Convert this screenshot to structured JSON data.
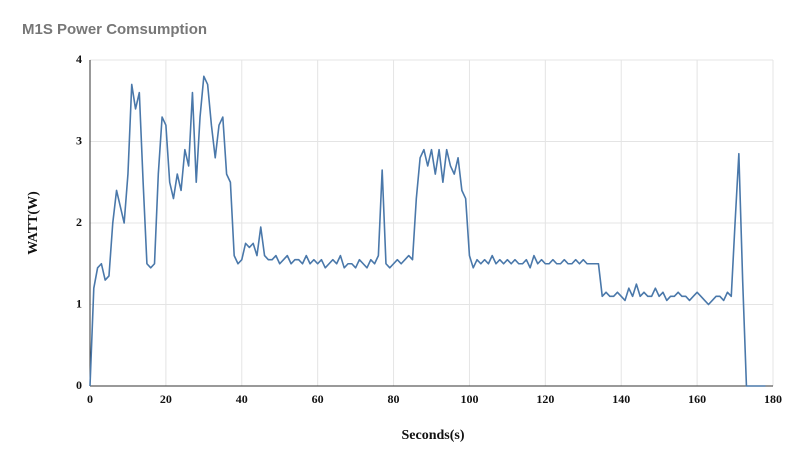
{
  "chart_data": {
    "type": "line",
    "title": "M1S Power Comsumption",
    "x_label": "Seconds(s)",
    "y_label": "WATT(W)",
    "x": [
      0,
      1,
      2,
      3,
      4,
      5,
      6,
      7,
      8,
      9,
      10,
      11,
      12,
      13,
      14,
      15,
      16,
      17,
      18,
      19,
      20,
      21,
      22,
      23,
      24,
      25,
      26,
      27,
      28,
      29,
      30,
      31,
      32,
      33,
      34,
      35,
      36,
      37,
      38,
      39,
      40,
      41,
      42,
      43,
      44,
      45,
      46,
      47,
      48,
      49,
      50,
      51,
      52,
      53,
      54,
      55,
      56,
      57,
      58,
      59,
      60,
      61,
      62,
      63,
      64,
      65,
      66,
      67,
      68,
      69,
      70,
      71,
      72,
      73,
      74,
      75,
      76,
      77,
      78,
      79,
      80,
      81,
      82,
      83,
      84,
      85,
      86,
      87,
      88,
      89,
      90,
      91,
      92,
      93,
      94,
      95,
      96,
      97,
      98,
      99,
      100,
      101,
      102,
      103,
      104,
      105,
      106,
      107,
      108,
      109,
      110,
      111,
      112,
      113,
      114,
      115,
      116,
      117,
      118,
      119,
      120,
      121,
      122,
      123,
      124,
      125,
      126,
      127,
      128,
      129,
      130,
      131,
      132,
      133,
      134,
      135,
      136,
      137,
      138,
      139,
      140,
      141,
      142,
      143,
      144,
      145,
      146,
      147,
      148,
      149,
      150,
      151,
      152,
      153,
      154,
      155,
      156,
      157,
      158,
      159,
      160,
      161,
      162,
      163,
      164,
      165,
      166,
      167,
      168,
      169,
      170,
      171,
      172,
      173,
      174,
      175,
      176,
      177,
      178
    ],
    "series": [
      {
        "name": "Power",
        "color": "#4a78aa",
        "values": [
          0,
          1.2,
          1.45,
          1.5,
          1.3,
          1.35,
          2.0,
          2.4,
          2.2,
          2.0,
          2.6,
          3.7,
          3.4,
          3.6,
          2.5,
          1.5,
          1.45,
          1.5,
          2.6,
          3.3,
          3.2,
          2.5,
          2.3,
          2.6,
          2.4,
          2.9,
          2.7,
          3.6,
          2.5,
          3.3,
          3.8,
          3.7,
          3.2,
          2.8,
          3.2,
          3.3,
          2.6,
          2.5,
          1.6,
          1.5,
          1.55,
          1.75,
          1.7,
          1.75,
          1.6,
          1.95,
          1.6,
          1.55,
          1.55,
          1.6,
          1.5,
          1.55,
          1.6,
          1.5,
          1.55,
          1.55,
          1.5,
          1.6,
          1.5,
          1.55,
          1.5,
          1.55,
          1.45,
          1.5,
          1.55,
          1.5,
          1.6,
          1.45,
          1.5,
          1.5,
          1.45,
          1.55,
          1.5,
          1.45,
          1.55,
          1.5,
          1.6,
          2.65,
          1.5,
          1.45,
          1.5,
          1.55,
          1.5,
          1.55,
          1.6,
          1.55,
          2.3,
          2.8,
          2.9,
          2.7,
          2.9,
          2.6,
          2.9,
          2.5,
          2.9,
          2.7,
          2.6,
          2.8,
          2.4,
          2.3,
          1.6,
          1.45,
          1.55,
          1.5,
          1.55,
          1.5,
          1.6,
          1.5,
          1.55,
          1.5,
          1.55,
          1.5,
          1.55,
          1.5,
          1.5,
          1.55,
          1.45,
          1.6,
          1.5,
          1.55,
          1.5,
          1.5,
          1.55,
          1.5,
          1.5,
          1.55,
          1.5,
          1.5,
          1.55,
          1.5,
          1.55,
          1.5,
          1.5,
          1.5,
          1.5,
          1.1,
          1.15,
          1.1,
          1.1,
          1.15,
          1.1,
          1.05,
          1.2,
          1.1,
          1.25,
          1.1,
          1.15,
          1.1,
          1.1,
          1.2,
          1.1,
          1.15,
          1.05,
          1.1,
          1.1,
          1.15,
          1.1,
          1.1,
          1.05,
          1.1,
          1.15,
          1.1,
          1.05,
          1.0,
          1.05,
          1.1,
          1.1,
          1.05,
          1.15,
          1.1,
          2.0,
          2.85,
          1.3,
          0,
          0,
          0,
          0,
          0,
          0
        ]
      }
    ],
    "xlim": [
      0,
      180
    ],
    "ylim": [
      0,
      4
    ],
    "xticks": [
      0,
      20,
      40,
      60,
      80,
      100,
      120,
      140,
      160,
      180
    ],
    "yticks": [
      0,
      1,
      2,
      3,
      4
    ],
    "grid": true
  }
}
